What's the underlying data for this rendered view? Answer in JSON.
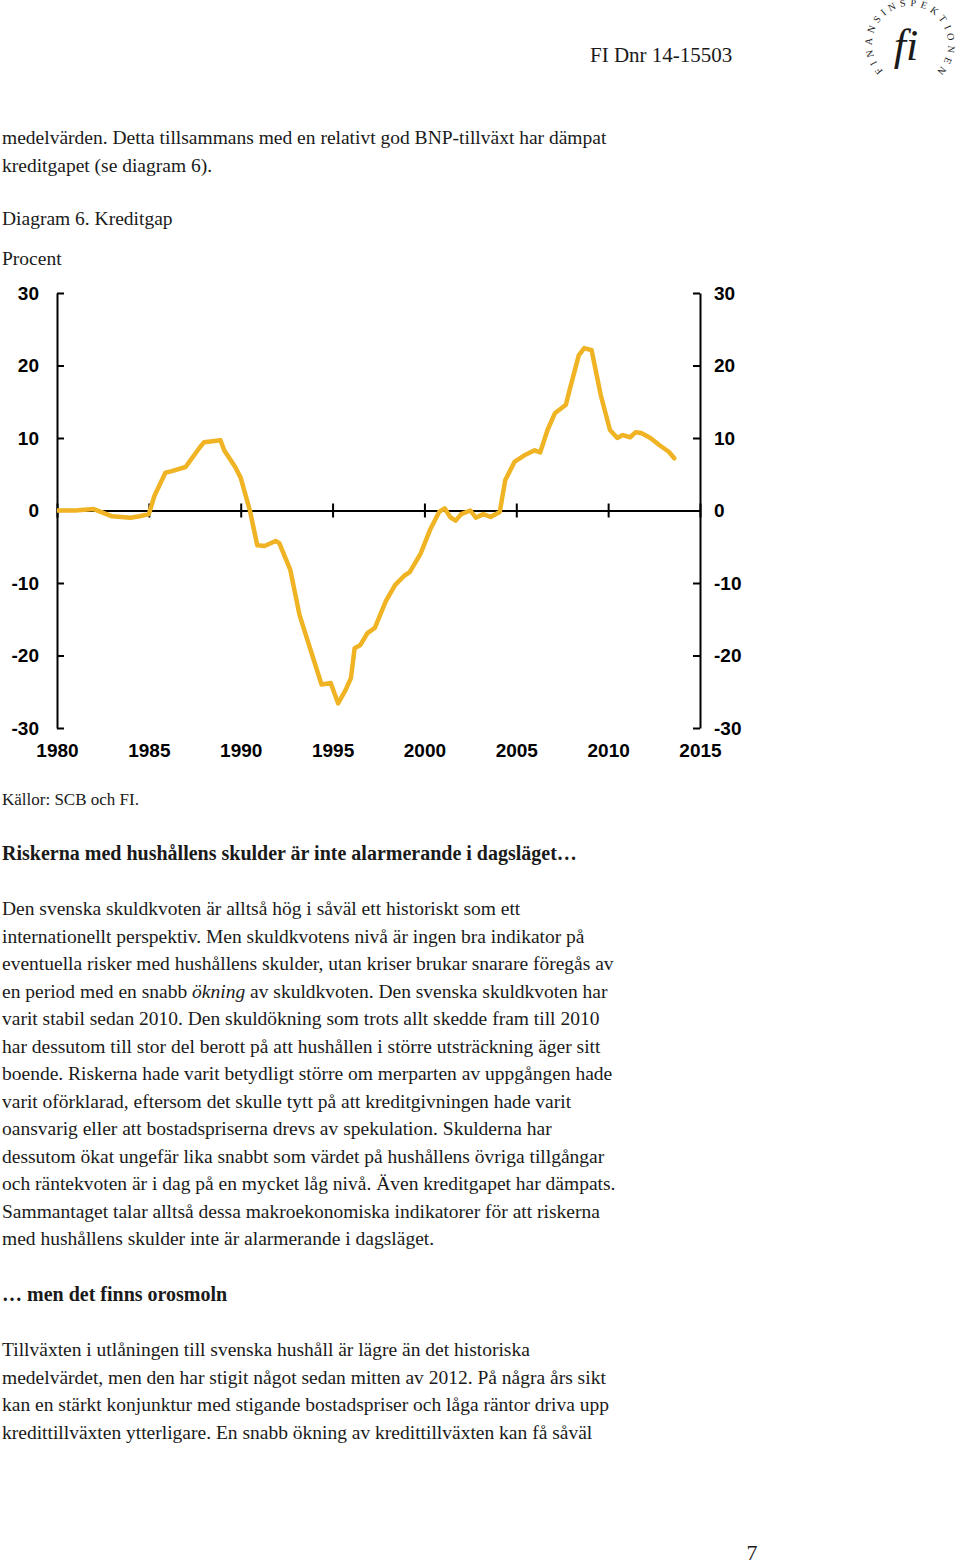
{
  "header": {
    "doc_id": "FI Dnr 14-15503",
    "logo_text": "FINANSINSPEKTIONEN",
    "logo_mark": "fi"
  },
  "intro": {
    "lines": [
      "medelvärden. Detta tillsammans med en relativt god BNP-tillväxt har dämpat",
      "kreditgapet (se diagram 6)."
    ]
  },
  "chart_data": {
    "type": "line",
    "title": "Diagram 6. Kreditgap",
    "y_label": "Procent",
    "x": [
      1980,
      1981,
      1982,
      1983,
      1984,
      1984.5,
      1985,
      1985.3,
      1985.9,
      1986.2,
      1987,
      1987.2,
      1987.8,
      1988,
      1988.9,
      1989.1,
      1989.7,
      1990,
      1990.5,
      1990.9,
      1991.3,
      1991.9,
      1992.1,
      1992.7,
      1993.2,
      1993.8,
      1994.4,
      1994.9,
      1995.3,
      1995.7,
      1996,
      1996.2,
      1996.5,
      1996.9,
      1997.3,
      1997.9,
      1998.4,
      1998.9,
      1999.2,
      1999.8,
      2000.3,
      2000.8,
      2001.1,
      2001.4,
      2001.7,
      2002,
      2002.5,
      2002.8,
      2003.2,
      2003.6,
      2004.1,
      2004.4,
      2004.9,
      2005.5,
      2006,
      2006.3,
      2006.7,
      2007.1,
      2007.7,
      2007.9,
      2008.4,
      2008.7,
      2009.1,
      2009.6,
      2010.1,
      2010.5,
      2010.8,
      2011.2,
      2011.5,
      2011.8,
      2012.3,
      2012.8,
      2013.3,
      2013.6
    ],
    "series": [
      {
        "color": "#f0b323",
        "values": [
          0,
          0,
          0.2,
          -0.8,
          -1.0,
          -0.8,
          -0.5,
          2,
          5.2,
          5.4,
          6,
          6.7,
          8.8,
          9.4,
          9.7,
          8.3,
          6,
          4.5,
          0,
          -4.8,
          -4.9,
          -4.2,
          -4.5,
          -8.2,
          -14.4,
          -19.2,
          -24,
          -23.8,
          -26.6,
          -24.8,
          -23.1,
          -19,
          -18.6,
          -16.9,
          -16.2,
          -12.5,
          -10.3,
          -9,
          -8.5,
          -5.9,
          -2.7,
          -0.2,
          0.3,
          -0.9,
          -1.4,
          -0.5,
          0,
          -1.0,
          -0.5,
          -0.9,
          -0.2,
          4.2,
          6.7,
          7.7,
          8.3,
          8,
          11.1,
          13.4,
          14.6,
          16.6,
          21.4,
          22.4,
          22.1,
          15.9,
          11.1,
          10,
          10.4,
          10.1,
          10.8,
          10.7,
          10,
          9,
          8.1,
          7.2
        ]
      }
    ],
    "xlim": [
      1980,
      2015
    ],
    "xticks": [
      1980,
      1985,
      1990,
      1995,
      2000,
      2005,
      2010,
      2015
    ],
    "ylim": [
      -30,
      30
    ],
    "yticks": [
      -30,
      -20,
      -10,
      0,
      10,
      20,
      30
    ]
  },
  "figure_source": "Källor: SCB och FI.",
  "sections": [
    {
      "heading": "Riskerna med hushållens skulder är inte alarmerande i dagsläget…",
      "lines": [
        "Den svenska skuldkvoten är alltså hög i såväl ett historiskt som ett",
        "internationellt perspektiv. Men skuldkvotens nivå är ingen bra indikator på",
        "eventuella risker med hushållens skulder, utan kriser brukar snarare föregås av",
        {
          "runs": [
            {
              "text": "en period med en snabb "
            },
            {
              "text": "ökning",
              "emphasis": true
            },
            {
              "text": " av skuldkvoten. Den svenska skuldkvoten har"
            }
          ]
        },
        "varit stabil sedan 2010. Den skuldökning som trots allt skedde fram till 2010",
        "har dessutom till stor del berott på att hushållen i större utsträckning äger sitt",
        "boende. Riskerna hade varit betydligt större om merparten av uppgången hade",
        "varit oförklarad, eftersom det skulle tytt på att kreditgivningen hade varit",
        "oansvarig eller att bostadspriserna drevs av spekulation. Skulderna har",
        "dessutom ökat ungefär lika snabbt som värdet på hushållens övriga tillgångar",
        "och räntekvoten är i dag på en mycket låg nivå. Även kreditgapet har dämpats.",
        "Sammantaget talar alltså dessa makroekonomiska indikatorer för att riskerna",
        "med hushållens skulder inte är alarmerande i dagsläget."
      ]
    },
    {
      "heading": "… men det finns orosmoln",
      "lines": [
        "Tillväxten i utlåningen till svenska hushåll är lägre än det historiska",
        "medelvärdet, men den har stigit något sedan mitten av 2012. På några års sikt",
        "kan en stärkt konjunktur med stigande bostadspriser och låga räntor driva upp",
        "kredittillväxten ytterligare. En snabb ökning av kredittillväxten kan få såväl"
      ]
    }
  ],
  "page_number": "7"
}
